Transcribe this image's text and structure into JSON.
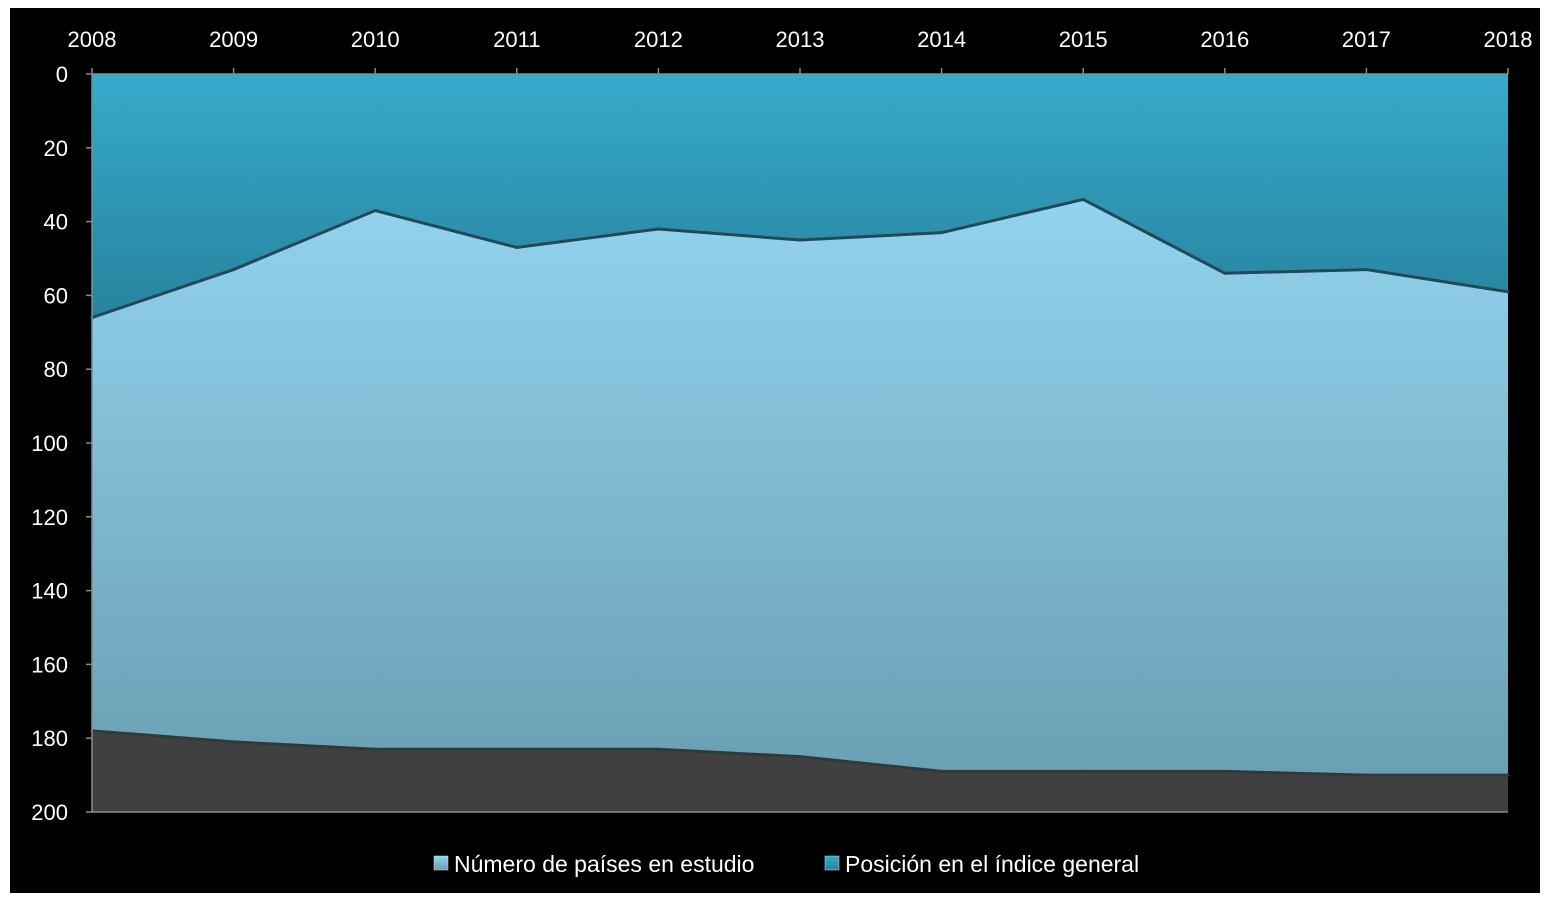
{
  "chart_data": {
    "type": "area",
    "x": [
      "2008",
      "2009",
      "2010",
      "2011",
      "2012",
      "2013",
      "2014",
      "2015",
      "2016",
      "2017",
      "2018"
    ],
    "series": [
      {
        "name": "Número de países en estudio",
        "values": [
          178,
          181,
          183,
          183,
          183,
          185,
          189,
          189,
          189,
          190,
          190
        ]
      },
      {
        "name": "Posición en el índice general",
        "values": [
          66,
          53,
          37,
          47,
          42,
          45,
          43,
          34,
          54,
          53,
          59
        ]
      }
    ],
    "y_axis": {
      "ticks": [
        0,
        20,
        40,
        60,
        80,
        100,
        120,
        140,
        160,
        180,
        200
      ],
      "ylim": [
        0,
        200
      ],
      "reversed": true
    },
    "x_axis_position": "top",
    "legend_position": "bottom",
    "colors": {
      "background": "#000000",
      "countries_area_top": "#93d3ee",
      "countries_area_bottom": "#6aa0b3",
      "position_area_top": "#37aacb",
      "position_area_bottom": "#27839e",
      "base_area": "#404040",
      "text": "#ffffff"
    }
  }
}
